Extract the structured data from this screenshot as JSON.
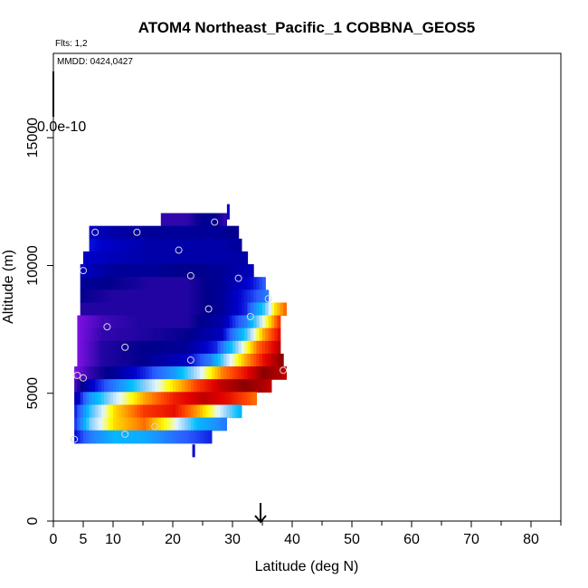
{
  "chart_data": {
    "type": "heatmap",
    "title": "ATOM4 Northeast_Pacific_1 COBBNA_GEOS5",
    "annotations": {
      "flights": "Flts: 1,2",
      "dates": "MMDD: 0424,0427",
      "scale_label": "0.0e-10"
    },
    "xlabel": "Latitude (deg N)",
    "ylabel": "Altitude (m)",
    "xlim": [
      0,
      85
    ],
    "ylim": [
      0,
      18300
    ],
    "xticks": [
      0,
      5,
      10,
      20,
      30,
      40,
      50,
      60,
      70,
      80
    ],
    "xtick_labels": [
      "0",
      "5",
      "10",
      "20",
      "30",
      "40",
      "50",
      "60",
      "70",
      "80"
    ],
    "xticks_minor": [
      15,
      25,
      35,
      45,
      55,
      65,
      75,
      85
    ],
    "yticks": [
      0,
      5000,
      10000,
      15000
    ],
    "ytick_labels": [
      "0",
      "5000",
      "10000",
      "15000"
    ],
    "arrow_marker_latitude": 34.5,
    "color_scale": [
      "#7a10e0",
      "#00008b",
      "#0000cd",
      "#2a5cff",
      "#1e90ff",
      "#00bfff",
      "#87cefa",
      "#e6f6ff",
      "#ffff00",
      "#ffa500",
      "#ff4500",
      "#e00000",
      "#8b0000"
    ],
    "rows": [
      {
        "alt": 11800,
        "cells": [
          [
            18,
            0.05
          ],
          [
            22,
            0.05
          ],
          [
            26,
            0.1
          ],
          [
            28.5,
            0.05
          ]
        ]
      },
      {
        "alt": 11300,
        "cells": [
          [
            6,
            0.15
          ],
          [
            10,
            0.12
          ],
          [
            16,
            0.1
          ],
          [
            22,
            0.1
          ],
          [
            28,
            0.1
          ],
          [
            30.5,
            0.08
          ]
        ]
      },
      {
        "alt": 10800,
        "cells": [
          [
            6,
            0.18
          ],
          [
            10,
            0.15
          ],
          [
            16,
            0.12
          ],
          [
            22,
            0.12
          ],
          [
            28,
            0.12
          ],
          [
            31,
            0.1
          ]
        ]
      },
      {
        "alt": 10300,
        "cells": [
          [
            5,
            0.16
          ],
          [
            10,
            0.14
          ],
          [
            16,
            0.12
          ],
          [
            22,
            0.12
          ],
          [
            28,
            0.12
          ],
          [
            32,
            0.12
          ]
        ]
      },
      {
        "alt": 9800,
        "cells": [
          [
            4.5,
            0.15
          ],
          [
            10,
            0.1
          ],
          [
            16,
            0.1
          ],
          [
            22,
            0.08
          ],
          [
            28,
            0.1
          ],
          [
            33,
            0.14
          ]
        ]
      },
      {
        "alt": 9300,
        "cells": [
          [
            4.5,
            0.1
          ],
          [
            10,
            0.08
          ],
          [
            16,
            0.06
          ],
          [
            22,
            0.06
          ],
          [
            28,
            0.1
          ],
          [
            33,
            0.18
          ],
          [
            35,
            0.25
          ]
        ]
      },
      {
        "alt": 8800,
        "cells": [
          [
            4.5,
            0.08
          ],
          [
            10,
            0.06
          ],
          [
            16,
            0.06
          ],
          [
            22,
            0.06
          ],
          [
            28,
            0.1
          ],
          [
            33,
            0.22
          ],
          [
            35.5,
            0.3
          ]
        ]
      },
      {
        "alt": 8300,
        "cells": [
          [
            4.5,
            0.06
          ],
          [
            10,
            0.06
          ],
          [
            16,
            0.06
          ],
          [
            22,
            0.06
          ],
          [
            28,
            0.1
          ],
          [
            32,
            0.2
          ],
          [
            35,
            0.45
          ],
          [
            37,
            0.7
          ],
          [
            38.5,
            0.8
          ]
        ]
      },
      {
        "alt": 7800,
        "cells": [
          [
            4,
            0.0
          ],
          [
            8,
            0.04
          ],
          [
            14,
            0.06
          ],
          [
            22,
            0.06
          ],
          [
            28,
            0.12
          ],
          [
            32,
            0.3
          ],
          [
            35,
            0.6
          ],
          [
            37.5,
            0.85
          ]
        ]
      },
      {
        "alt": 7300,
        "cells": [
          [
            4,
            0.0
          ],
          [
            8,
            0.05
          ],
          [
            14,
            0.06
          ],
          [
            22,
            0.08
          ],
          [
            28,
            0.15
          ],
          [
            32,
            0.45
          ],
          [
            35,
            0.75
          ],
          [
            37.5,
            0.9
          ]
        ]
      },
      {
        "alt": 6800,
        "cells": [
          [
            4,
            0.0
          ],
          [
            8,
            0.06
          ],
          [
            14,
            0.08
          ],
          [
            22,
            0.1
          ],
          [
            27,
            0.2
          ],
          [
            31,
            0.55
          ],
          [
            34,
            0.8
          ],
          [
            37.5,
            0.95
          ]
        ]
      },
      {
        "alt": 6300,
        "cells": [
          [
            4,
            0.0
          ],
          [
            8,
            0.06
          ],
          [
            14,
            0.08
          ],
          [
            22,
            0.15
          ],
          [
            26,
            0.3
          ],
          [
            29,
            0.55
          ],
          [
            32,
            0.75
          ],
          [
            35,
            0.9
          ],
          [
            38,
            1.0
          ]
        ]
      },
      {
        "alt": 5800,
        "cells": [
          [
            3.5,
            0.0
          ],
          [
            6,
            0.05
          ],
          [
            10,
            0.1
          ],
          [
            15,
            0.2
          ],
          [
            20,
            0.35
          ],
          [
            24,
            0.55
          ],
          [
            28,
            0.78
          ],
          [
            32,
            0.9
          ],
          [
            35,
            1.0
          ],
          [
            38.5,
            0.95
          ]
        ]
      },
      {
        "alt": 5300,
        "cells": [
          [
            3.5,
            0.04
          ],
          [
            6,
            0.15
          ],
          [
            10,
            0.3
          ],
          [
            15,
            0.5
          ],
          [
            20,
            0.7
          ],
          [
            24,
            0.85
          ],
          [
            28,
            0.95
          ],
          [
            32,
            1.0
          ],
          [
            36,
            0.95
          ]
        ]
      },
      {
        "alt": 4800,
        "cells": [
          [
            3.5,
            0.12
          ],
          [
            6,
            0.35
          ],
          [
            10,
            0.55
          ],
          [
            15,
            0.75
          ],
          [
            20,
            0.88
          ],
          [
            25,
            0.95
          ],
          [
            29,
            0.9
          ],
          [
            33.5,
            0.8
          ]
        ]
      },
      {
        "alt": 4300,
        "cells": [
          [
            3.5,
            0.2
          ],
          [
            6,
            0.45
          ],
          [
            10,
            0.7
          ],
          [
            15,
            0.85
          ],
          [
            20,
            0.9
          ],
          [
            24,
            0.75
          ],
          [
            28,
            0.55
          ],
          [
            31,
            0.4
          ]
        ]
      },
      {
        "alt": 3800,
        "cells": [
          [
            3.5,
            0.22
          ],
          [
            6,
            0.5
          ],
          [
            10,
            0.7
          ],
          [
            15,
            0.8
          ],
          [
            20,
            0.6
          ],
          [
            24,
            0.4
          ],
          [
            28.5,
            0.3
          ]
        ]
      },
      {
        "alt": 3300,
        "cells": [
          [
            3.5,
            0.18
          ],
          [
            6,
            0.3
          ],
          [
            10,
            0.4
          ],
          [
            15,
            0.38
          ],
          [
            20,
            0.28
          ],
          [
            26,
            0.2
          ]
        ]
      }
    ],
    "spikes": [
      {
        "lat": 29.3,
        "alt_from": 11800,
        "alt_to": 12400,
        "color": "#0000cd"
      },
      {
        "lat": 23.5,
        "alt_from": 2500,
        "alt_to": 3000,
        "color": "#0000cd"
      }
    ],
    "circles": [
      [
        7,
        11300
      ],
      [
        14,
        11300
      ],
      [
        27,
        11700
      ],
      [
        21,
        10600
      ],
      [
        5,
        9800
      ],
      [
        23,
        9600
      ],
      [
        31,
        9500
      ],
      [
        36,
        8700
      ],
      [
        26,
        8300
      ],
      [
        33,
        8000
      ],
      [
        9,
        7600
      ],
      [
        12,
        6800
      ],
      [
        23,
        6300
      ],
      [
        38.5,
        5900
      ],
      [
        4,
        5700
      ],
      [
        5,
        5600
      ],
      [
        17,
        3700
      ],
      [
        12,
        3400
      ],
      [
        3.5,
        3200
      ]
    ]
  }
}
